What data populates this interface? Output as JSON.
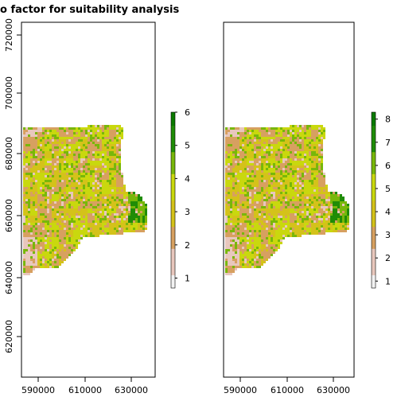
{
  "title": "o factor for suitability analysis",
  "maps": [
    {
      "id": "left",
      "y_ticks": [
        "620000",
        "640000",
        "660000",
        "680000",
        "700000",
        "720000"
      ],
      "x_ticks": [
        "590000",
        "610000",
        "630000"
      ],
      "legend_ticks": [
        "1",
        "2",
        "3",
        "4",
        "5",
        "6"
      ],
      "legend_min": 0.7,
      "legend_max": 6.0
    },
    {
      "id": "right",
      "y_ticks": [],
      "x_ticks": [
        "590000",
        "610000",
        "630000"
      ],
      "legend_ticks": [
        "1",
        "2",
        "3",
        "4",
        "5",
        "6",
        "7",
        "8"
      ],
      "legend_min": 0.7,
      "legend_max": 8.3
    }
  ],
  "colors": {
    "ramp": [
      "#f2f2f2",
      "#e8c7bd",
      "#d7a060",
      "#d4c21a",
      "#c9d80e",
      "#78b70a",
      "#1f8c06",
      "#0a7a00"
    ],
    "outline": "#000000",
    "outer_white": "#ffffff"
  }
}
